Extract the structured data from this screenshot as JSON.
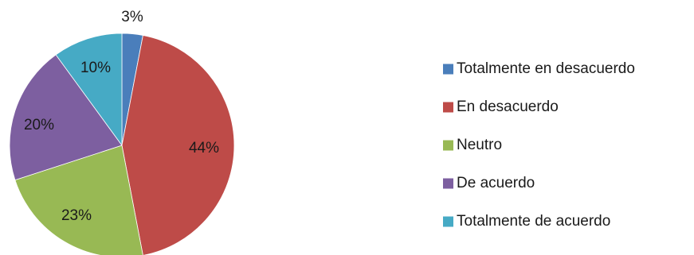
{
  "chart_data": {
    "type": "pie",
    "categories": [
      "Totalmente en desacuerdo",
      "En desacuerdo",
      "Neutro",
      "De acuerdo",
      "Totalmente de acuerdo"
    ],
    "values": [
      3,
      44,
      23,
      20,
      10
    ],
    "data_labels": [
      "3%",
      "44%",
      "23%",
      "20%",
      "10%"
    ],
    "colors": [
      "#4a7ebb",
      "#be4b48",
      "#98b954",
      "#7d5fa0",
      "#46aac5"
    ],
    "legend_position": "right",
    "start_angle": "top, clockwise",
    "title": ""
  }
}
